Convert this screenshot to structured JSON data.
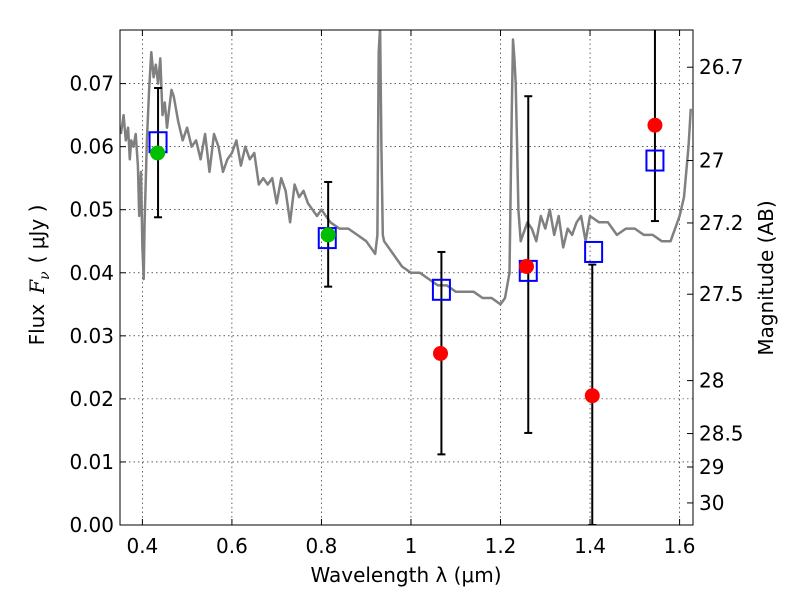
{
  "chart_data": {
    "type": "scatter",
    "title": "",
    "xlabel": "Wavelength  λ (μm)",
    "ylabel": {
      "prefix": "Flux",
      "symbol_base": "F",
      "symbol_sub": "ν",
      "unit": "( μJy )"
    },
    "ylabel_right": "Magnitude (AB)",
    "xlim": [
      0.35,
      1.63
    ],
    "ylim": [
      0.0,
      0.0785
    ],
    "grid": true,
    "x_ticks": [
      {
        "value": 0.4,
        "label": "0.4"
      },
      {
        "value": 0.6,
        "label": "0.6"
      },
      {
        "value": 0.8,
        "label": "0.8"
      },
      {
        "value": 1.0,
        "label": "1"
      },
      {
        "value": 1.2,
        "label": "1.2"
      },
      {
        "value": 1.4,
        "label": "1.4"
      },
      {
        "value": 1.6,
        "label": "1.6"
      }
    ],
    "y_ticks": [
      {
        "value": 0.0,
        "label": "0.00"
      },
      {
        "value": 0.01,
        "label": "0.01"
      },
      {
        "value": 0.02,
        "label": "0.02"
      },
      {
        "value": 0.03,
        "label": "0.03"
      },
      {
        "value": 0.04,
        "label": "0.04"
      },
      {
        "value": 0.05,
        "label": "0.05"
      },
      {
        "value": 0.06,
        "label": "0.06"
      },
      {
        "value": 0.07,
        "label": "0.07"
      }
    ],
    "right_ticks": [
      {
        "flux": 0.0726,
        "label": "26.7"
      },
      {
        "flux": 0.0578,
        "label": "27"
      },
      {
        "flux": 0.0479,
        "label": "27.2"
      },
      {
        "flux": 0.0366,
        "label": "27.5"
      },
      {
        "flux": 0.0229,
        "label": "28"
      },
      {
        "flux": 0.0145,
        "label": "28.5"
      },
      {
        "flux": 0.0092,
        "label": "29"
      },
      {
        "flux": 0.0035,
        "label": "30"
      }
    ],
    "series": [
      {
        "name": "model-spectrum",
        "kind": "line",
        "color": "#808080",
        "x": [
          0.352,
          0.358,
          0.363,
          0.368,
          0.372,
          0.375,
          0.38,
          0.385,
          0.39,
          0.393,
          0.397,
          0.4,
          0.403,
          0.405,
          0.41,
          0.415,
          0.42,
          0.425,
          0.43,
          0.435,
          0.44,
          0.445,
          0.45,
          0.455,
          0.46,
          0.465,
          0.47,
          0.48,
          0.49,
          0.5,
          0.51,
          0.52,
          0.53,
          0.54,
          0.55,
          0.56,
          0.57,
          0.58,
          0.59,
          0.6,
          0.61,
          0.62,
          0.63,
          0.64,
          0.65,
          0.66,
          0.67,
          0.68,
          0.69,
          0.7,
          0.71,
          0.72,
          0.73,
          0.74,
          0.75,
          0.76,
          0.77,
          0.78,
          0.79,
          0.8,
          0.82,
          0.84,
          0.86,
          0.88,
          0.9,
          0.91,
          0.92,
          0.925,
          0.928,
          0.931,
          0.934,
          0.937,
          0.94,
          0.96,
          0.98,
          1.0,
          1.02,
          1.04,
          1.06,
          1.08,
          1.1,
          1.12,
          1.14,
          1.16,
          1.18,
          1.2,
          1.21,
          1.22,
          1.225,
          1.228,
          1.231,
          1.234,
          1.237,
          1.24,
          1.245,
          1.25,
          1.26,
          1.27,
          1.28,
          1.29,
          1.3,
          1.31,
          1.32,
          1.33,
          1.34,
          1.35,
          1.36,
          1.37,
          1.38,
          1.39,
          1.4,
          1.42,
          1.44,
          1.46,
          1.48,
          1.5,
          1.52,
          1.54,
          1.56,
          1.58,
          1.6,
          1.61,
          1.62,
          1.625
        ],
        "y": [
          0.062,
          0.065,
          0.061,
          0.063,
          0.058,
          0.061,
          0.06,
          0.062,
          0.057,
          0.049,
          0.056,
          0.044,
          0.039,
          0.048,
          0.061,
          0.069,
          0.075,
          0.071,
          0.073,
          0.07,
          0.074,
          0.065,
          0.067,
          0.063,
          0.066,
          0.069,
          0.068,
          0.064,
          0.061,
          0.063,
          0.06,
          0.061,
          0.058,
          0.062,
          0.056,
          0.062,
          0.06,
          0.056,
          0.058,
          0.059,
          0.061,
          0.057,
          0.06,
          0.058,
          0.059,
          0.054,
          0.055,
          0.054,
          0.055,
          0.051,
          0.055,
          0.053,
          0.048,
          0.054,
          0.052,
          0.053,
          0.051,
          0.05,
          0.049,
          0.05,
          0.048,
          0.047,
          0.047,
          0.046,
          0.045,
          0.044,
          0.043,
          0.046,
          0.075,
          0.079,
          0.06,
          0.046,
          0.045,
          0.043,
          0.041,
          0.04,
          0.04,
          0.039,
          0.038,
          0.038,
          0.037,
          0.037,
          0.037,
          0.036,
          0.036,
          0.035,
          0.036,
          0.04,
          0.065,
          0.077,
          0.074,
          0.07,
          0.06,
          0.05,
          0.045,
          0.046,
          0.048,
          0.047,
          0.045,
          0.049,
          0.047,
          0.05,
          0.046,
          0.049,
          0.044,
          0.047,
          0.046,
          0.048,
          0.049,
          0.045,
          0.049,
          0.048,
          0.048,
          0.046,
          0.047,
          0.047,
          0.046,
          0.046,
          0.045,
          0.045,
          0.049,
          0.052,
          0.06,
          0.066
        ]
      },
      {
        "name": "blue-model-photometry",
        "kind": "square",
        "color": "#0000ff",
        "x": [
          0.435,
          0.813,
          1.068,
          1.262,
          1.408,
          1.545
        ],
        "y": [
          0.0607,
          0.0455,
          0.0373,
          0.0403,
          0.0433,
          0.0578
        ]
      },
      {
        "name": "green-detections",
        "kind": "circle",
        "color": "#00bf00",
        "x": [
          0.434,
          0.815
        ],
        "y": [
          0.059,
          0.046
        ]
      },
      {
        "name": "red-detections",
        "kind": "circle",
        "color": "#ff0000",
        "x": [
          1.066,
          1.258,
          1.405,
          1.545
        ],
        "y": [
          0.0272,
          0.041,
          0.0205,
          0.0634
        ]
      },
      {
        "name": "error-bars",
        "kind": "errorbar",
        "color": "#000000",
        "x": [
          0.435,
          0.815,
          1.068,
          1.262,
          1.405,
          1.545
        ],
        "low": [
          0.0488,
          0.0378,
          0.0112,
          0.0146,
          0.0,
          0.0482
        ],
        "high": [
          0.0693,
          0.0544,
          0.0433,
          0.068,
          0.0413,
          0.0787
        ]
      }
    ]
  }
}
